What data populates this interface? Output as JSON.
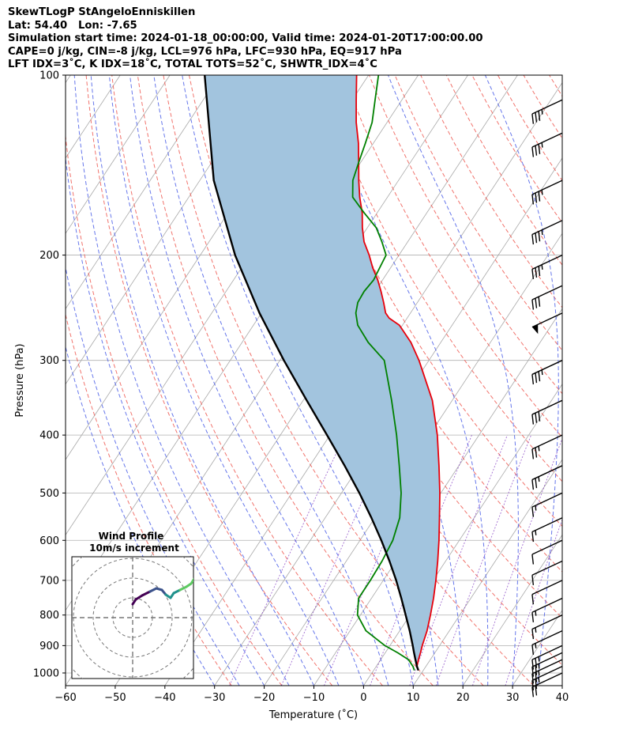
{
  "header": {
    "line1": "SkewTLogP StAngeloEnniskillen",
    "line2": "Lat: 54.40   Lon: -7.65",
    "line3": "Simulation start time: 2024-01-18_00:00:00, Valid time: 2024-01-20T17:00:00.00",
    "line4": "CAPE=0 j/kg, CIN=-8 j/kg, LCL=976 hPa, LFC=930 hPa, EQ=917 hPa",
    "line5": "LFT IDX=3˚C, K IDX=18˚C, TOTAL TOTS=52˚C, SHWTR_IDX=4˚C"
  },
  "chart_data": {
    "type": "line",
    "xlabel": "Temperature (˚C)",
    "ylabel": "Pressure (hPa)",
    "xlim": [
      -60,
      40
    ],
    "ylim": [
      1050,
      100
    ],
    "y_scale": "log",
    "grid": true,
    "x_ticks": [
      -60,
      -50,
      -40,
      -30,
      -20,
      -10,
      0,
      10,
      20,
      30,
      40
    ],
    "x_tick_labels": [
      "−60",
      "−50",
      "−40",
      "−30",
      "−20",
      "−10",
      "0",
      "10",
      "20",
      "30",
      "40"
    ],
    "y_ticks": [
      1000,
      900,
      800,
      700,
      600,
      500,
      400,
      300,
      200,
      100
    ],
    "y_tick_labels": [
      "1000",
      "900",
      "800",
      "700",
      "600",
      "500",
      "400",
      "300",
      "200",
      "100"
    ],
    "series": [
      {
        "color": "#e8000b",
        "pressure": [
          990,
          975,
          950,
          925,
          900,
          850,
          800,
          750,
          700,
          650,
          600,
          550,
          500,
          450,
          400,
          350,
          300,
          280,
          262,
          255,
          250,
          240,
          230,
          220,
          210,
          200,
          190,
          180,
          170,
          160,
          150,
          140,
          130,
          120,
          110,
          100
        ],
        "values": [
          9.0,
          8.2,
          7.6,
          7.1,
          6.5,
          5.5,
          4.1,
          2.5,
          0.6,
          -1.6,
          -4.1,
          -7.0,
          -10.2,
          -14.0,
          -18.4,
          -24.0,
          -32.0,
          -36.0,
          -40.6,
          -43.6,
          -45.0,
          -46.8,
          -48.8,
          -51.0,
          -53.6,
          -56.0,
          -58.8,
          -61.0,
          -63.0,
          -65.6,
          -68.0,
          -70.4,
          -73.0,
          -76.2,
          -79.2,
          -82.4
        ]
      },
      {
        "color": "#008000",
        "pressure": [
          990,
          975,
          950,
          925,
          900,
          850,
          800,
          750,
          700,
          650,
          600,
          550,
          500,
          450,
          400,
          350,
          300,
          280,
          262,
          250,
          240,
          230,
          220,
          210,
          200,
          190,
          180,
          170,
          160,
          150,
          140,
          130,
          120,
          110,
          100
        ],
        "values": [
          8.2,
          7.4,
          5.6,
          2.5,
          -1.0,
          -6.8,
          -10.6,
          -12.6,
          -12.6,
          -12.8,
          -13.4,
          -15.0,
          -18.0,
          -22.0,
          -26.6,
          -32.2,
          -39.0,
          -44.6,
          -49.0,
          -51.0,
          -52.0,
          -52.2,
          -51.8,
          -52.2,
          -52.6,
          -55.2,
          -58.2,
          -62.6,
          -67.0,
          -69.2,
          -70.4,
          -71.6,
          -73.0,
          -75.4,
          -78.0
        ]
      },
      {
        "color": "#000000",
        "pressure": [
          990,
          975,
          950,
          925,
          900,
          850,
          800,
          750,
          700,
          650,
          600,
          550,
          500,
          450,
          400,
          350,
          300,
          250,
          200,
          150,
          100
        ],
        "values": [
          9.0,
          8.2,
          7.0,
          5.8,
          4.6,
          2.0,
          -0.9,
          -4.0,
          -7.4,
          -11.3,
          -15.7,
          -20.7,
          -26.4,
          -33.0,
          -40.6,
          -49.3,
          -59.2,
          -70.4,
          -83.0,
          -97.2,
          -113.0
        ]
      }
    ],
    "cape_cin_fill_color": "#a2c4de",
    "wind_barbs": {
      "pressure": [
        1000,
        975,
        950,
        925,
        900,
        850,
        800,
        750,
        700,
        650,
        600,
        550,
        500,
        450,
        400,
        350,
        300,
        250,
        225,
        200,
        175,
        150,
        125,
        110
      ],
      "speed_kt": [
        20,
        25,
        25,
        25,
        25,
        15,
        15,
        15,
        10,
        10,
        10,
        15,
        15,
        25,
        25,
        30,
        35,
        50,
        30,
        35,
        35,
        35,
        35,
        35
      ]
    },
    "inset": {
      "title_line1": "Wind Profile",
      "title_line2": "10m/s increment",
      "hodograph_colors": [
        "#440154",
        "#3b528b",
        "#21918c",
        "#5ec962"
      ]
    }
  }
}
